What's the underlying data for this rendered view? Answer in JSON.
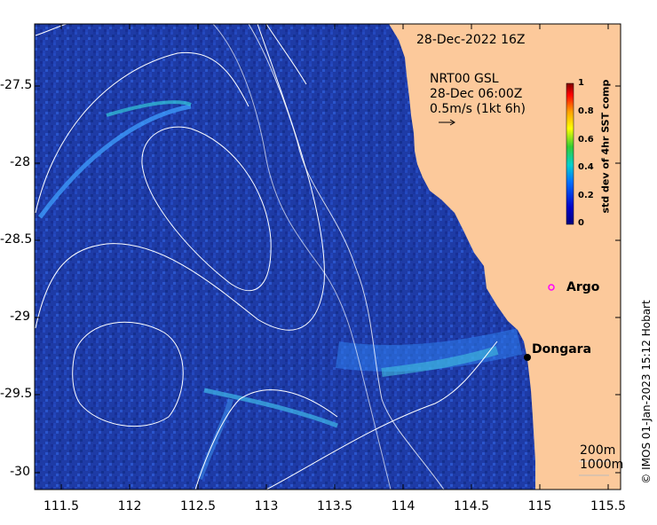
{
  "title": "28-Dec-2022 16Z",
  "current_info": {
    "line1": "NRT00 GSL",
    "line2": "28-Dec 06:00Z",
    "line3": "0.5m/s (1kt 6h)"
  },
  "colorbar": {
    "label": "std dev of 4hr SST comp",
    "ticks": [
      "1",
      "0.8",
      "0.6",
      "0.4",
      "0.2",
      "0"
    ],
    "colors": [
      "#7f0000",
      "#ff0000",
      "#ffbf00",
      "#ffff00",
      "#33cc33",
      "#00cccc",
      "#0070ff",
      "#0000b0",
      "#000080"
    ]
  },
  "places": [
    {
      "name": "Argo",
      "marker": "open-circle",
      "color": "#ff00ff"
    },
    {
      "name": "Dongara",
      "marker": "filled-circle",
      "color": "#000000"
    }
  ],
  "legend": {
    "contour1": "200m",
    "contour2": "1000m"
  },
  "credit": "© IMOS 01-Jan-2023 15:12 Hobart",
  "axes": {
    "x_ticks": [
      "111.5",
      "112",
      "112.5",
      "113",
      "113.5",
      "114",
      "114.5",
      "115",
      "115.5"
    ],
    "y_ticks": [
      "-27.5",
      "-28",
      "-28.5",
      "-29",
      "-29.5",
      "-30"
    ]
  },
  "map_colors": {
    "land": "#fcc99b",
    "ocean": "#1c3aa8",
    "contour": "#ffffff"
  }
}
